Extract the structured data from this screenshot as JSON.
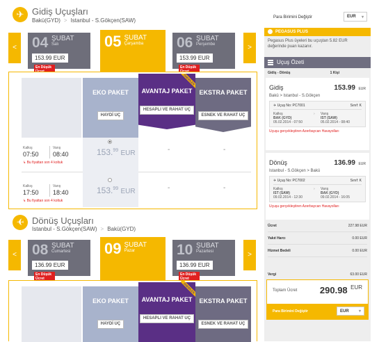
{
  "outbound": {
    "title": "Gidiş Uçuşları",
    "from": "Bakü(GYD)",
    "to": "Istanbul - S.Gökçen(SAW)",
    "dates": [
      {
        "day": "04",
        "month": "ŞUBAT",
        "weekday": "Salı",
        "price": "153.99 EUR",
        "badge": "En Düşük Ücret"
      },
      {
        "day": "05",
        "month": "ŞUBAT",
        "weekday": "Çarşamba",
        "selected": true
      },
      {
        "day": "06",
        "month": "ŞUBAT",
        "weekday": "Perşembe",
        "price": "153.99 EUR",
        "badge": "En Düşük Ücret"
      }
    ],
    "flights": [
      {
        "dep_label": "Kalkış",
        "dep": "07:50",
        "arr_label": "Varış",
        "arr": "08:40",
        "warning": "Bu fiyattan son 4 koltuk",
        "price_int": "153.",
        "price_dec": "99",
        "price_cur": "EUR",
        "selected": true,
        "avantaj": "-",
        "ekstra": "-"
      },
      {
        "dep_label": "Kalkış",
        "dep": "17:50",
        "arr_label": "Varış",
        "arr": "18:40",
        "warning": "Bu fiyattan son 4 koltuk",
        "price_int": "153.",
        "price_dec": "99",
        "price_cur": "EUR",
        "selected": false,
        "avantaj": "-",
        "ekstra": "-"
      }
    ]
  },
  "inbound": {
    "title": "Dönüş Uçuşları",
    "from": "Istanbul - S.Gökçen(SAW)",
    "to": "Bakü(GYD)",
    "dates": [
      {
        "day": "08",
        "month": "ŞUBAT",
        "weekday": "Cumartesi",
        "price": "136.99 EUR",
        "badge": "En Düşük Ücret"
      },
      {
        "day": "09",
        "month": "ŞUBAT",
        "weekday": "Pazar",
        "selected": true
      },
      {
        "day": "10",
        "month": "ŞUBAT",
        "weekday": "Pazartesi",
        "price": "136.99 EUR",
        "badge": "En Düşük Ücret"
      }
    ]
  },
  "packages": {
    "eko": {
      "name": "EKO PAKET",
      "tag": "HAYDİ UÇ"
    },
    "avantaj": {
      "name": "AVANTAJ PAKET",
      "tag": "HESAPLI VE RAHAT UÇ",
      "ribbon": "ÖNERİLEN"
    },
    "ekstra": {
      "name": "EKSTRA PAKET",
      "tag": "ESNEK VE RAHAT UÇ"
    }
  },
  "currency": {
    "label": "Para Birimini Değiştir",
    "value": "EUR"
  },
  "pegasus_plus": {
    "title": "PEGASUS PLUS",
    "text": "Pegasus Plus üyeleri bu uçuştan  5.82 EUR değerinde puan kazanır."
  },
  "summary": {
    "title": "Uçuş Özeti",
    "route_label": "Gidiş - Dönüş",
    "pax": "1 Kişi",
    "gidis": {
      "label": "Gidiş",
      "price": "153.99",
      "cur": "EUR",
      "route": "Bakü  >  Istanbul - S.Gökçen",
      "flight_no": "Uçuş No: PC7001",
      "class": "Sınıf: K",
      "dep_label": "Kalkış",
      "dep_code": "BAK (GYD)",
      "dep_time": "05.02.2014 - 07:50",
      "arr_label": "Varış",
      "arr_code": "IST (SAW)",
      "arr_time": "05.02.2014 - 08:40",
      "operator": "Uçuşu gerçekleştiren Azerbaycan Havayolları"
    },
    "donus": {
      "label": "Dönüş",
      "price": "136.99",
      "cur": "EUR",
      "route": "Istanbul - S.Gökçen  >  Bakü",
      "flight_no": "Uçuş No: PC7002",
      "class": "Sınıf: K",
      "dep_label": "Kalkış",
      "dep_code": "IST (SAW)",
      "dep_time": "09.02.2014 - 12:30",
      "arr_label": "Varış",
      "arr_code": "BAK (GYD)",
      "arr_time": "09.02.2014 - 16:05",
      "operator": "Uçuşu gerçekleştiren Azerbaycan Havayolları"
    },
    "lines": [
      {
        "label": "Ücret",
        "value": "227.98 EUR"
      },
      {
        "label": "Yakıt Harcı",
        "value": "0.00 EUR"
      },
      {
        "label": "Hizmet Bedeli",
        "value": "0.00 EUR"
      },
      {
        "label": "Vergi",
        "value": "63.00 EUR"
      }
    ],
    "total_label": "Toplam Ücret",
    "total": "290.98",
    "total_cur": "EUR"
  }
}
